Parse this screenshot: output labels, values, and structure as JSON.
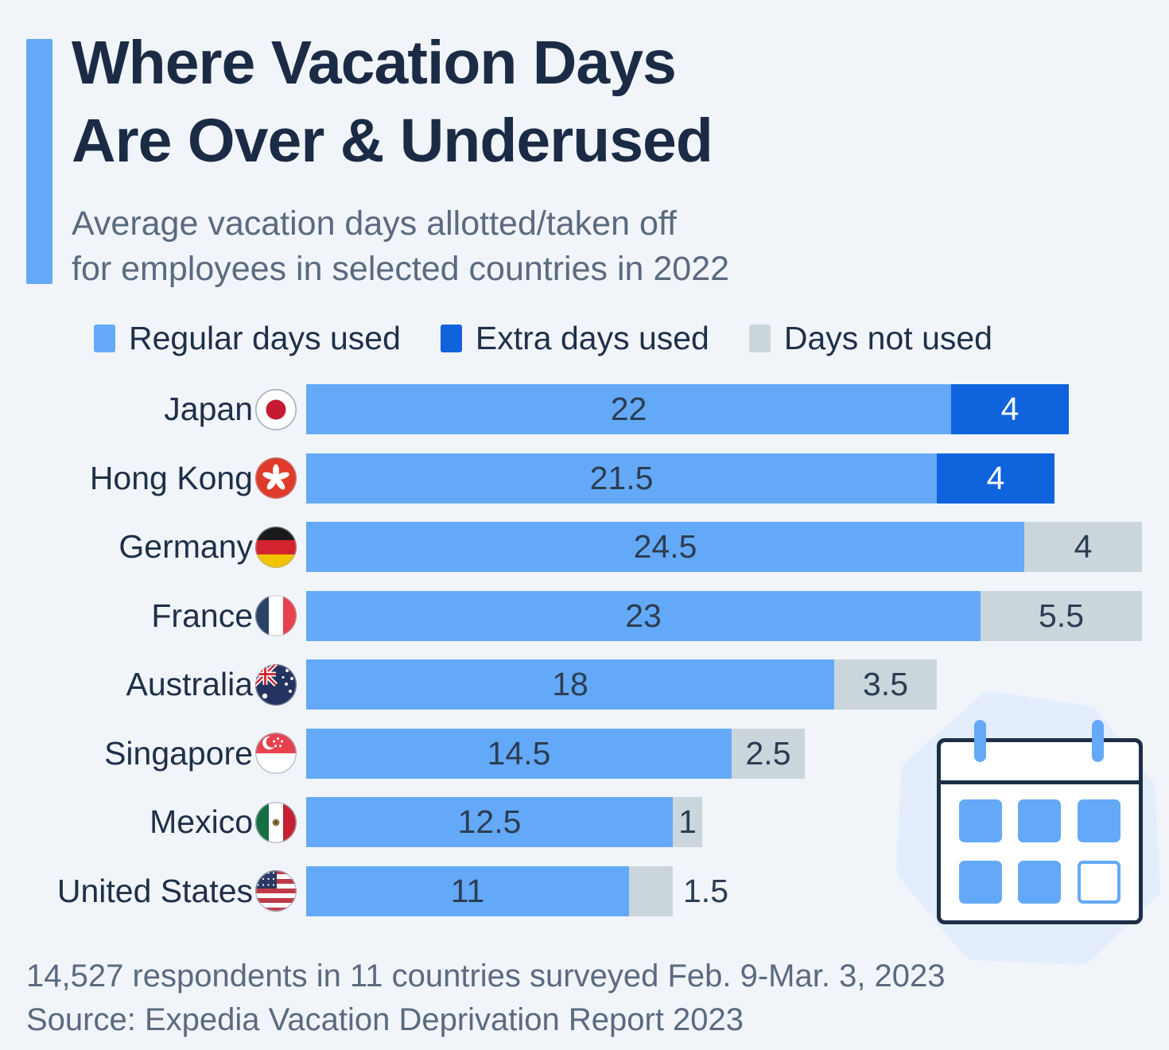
{
  "header": {
    "title_line1": "Where Vacation Days",
    "title_line2": "Are Over & Underused",
    "subtitle_line1": "Average vacation days allotted/taken off",
    "subtitle_line2": "for employees in selected countries in 2022"
  },
  "legend": {
    "items": [
      {
        "label": "Regular days used",
        "color": "#64a9f7"
      },
      {
        "label": "Extra days used",
        "color": "#0f63dc"
      },
      {
        "label": "Days not used",
        "color": "#cbd6dc"
      }
    ]
  },
  "chart": {
    "rows": [
      {
        "country": "Japan",
        "flag": "japan"
      },
      {
        "country": "Hong Kong",
        "flag": "hongkong"
      },
      {
        "country": "Germany",
        "flag": "germany"
      },
      {
        "country": "France",
        "flag": "france"
      },
      {
        "country": "Australia",
        "flag": "australia"
      },
      {
        "country": "Singapore",
        "flag": "singapore"
      },
      {
        "country": "Mexico",
        "flag": "mexico"
      },
      {
        "country": "United States",
        "flag": "us",
        "unused_label_outside": true
      }
    ]
  },
  "chart_data": {
    "type": "bar",
    "orientation": "horizontal",
    "stacked": true,
    "title": "Where Vacation Days Are Over & Underused",
    "subtitle": "Average vacation days allotted/taken off for employees in selected countries in 2022",
    "categories": [
      "Japan",
      "Hong Kong",
      "Germany",
      "France",
      "Australia",
      "Singapore",
      "Mexico",
      "United States"
    ],
    "series": [
      {
        "name": "Regular days used",
        "color": "#64a9f7",
        "values": [
          22,
          21.5,
          24.5,
          23,
          18,
          14.5,
          12.5,
          11
        ]
      },
      {
        "name": "Extra days used",
        "color": "#0f63dc",
        "values": [
          4,
          4,
          0,
          0,
          0,
          0,
          0,
          0
        ]
      },
      {
        "name": "Days not used",
        "color": "#cbd6dc",
        "values": [
          0,
          0,
          4,
          5.5,
          3.5,
          2.5,
          1,
          1.5
        ]
      }
    ],
    "xlim": [
      0,
      28.5
    ],
    "unit": "days",
    "value_labels": true,
    "legend_position": "top",
    "grid": false
  },
  "footer": {
    "line1": "14,527 respondents in 11 countries surveyed Feb. 9-Mar. 3, 2023",
    "line2": "Source: Expedia Vacation Deprivation Report 2023"
  },
  "colors": {
    "background": "#f1f5f9",
    "accent_bar": "#64a9f7",
    "regular_days": "#64a9f7",
    "extra_days": "#0f63dc",
    "days_not_used": "#cbd6dc",
    "title_text": "#1c2b45",
    "value_text": "#2c3d53",
    "muted_text": "#5a6a80",
    "calendar_outline": "#1e2e47",
    "blob": "#e3edfc"
  }
}
